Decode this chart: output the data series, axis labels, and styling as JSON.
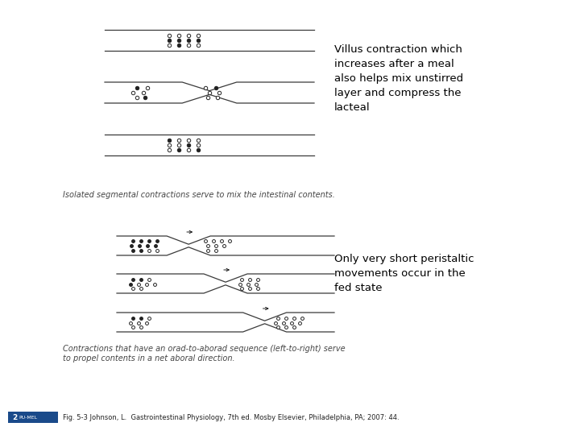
{
  "bg_color": "#ffffff",
  "text1": "Villus contraction which\nincreases after a meal\nalso helps mix unstirred\nlayer and compress the\nlacteal",
  "text2": "Only very short peristaltic\nmovements occur in the\nfed state",
  "caption1": "Isolated segmental contractions serve to mix the intestinal contents.",
  "caption2": "Contractions that have an orad-to-aborad sequence (left-to-right) serve\nto propel contents in a net aboral direction.",
  "footer": "Fig. 5-3 Johnson, L.  Gastrointestinal Physiology, 7th ed. Mosby Elsevier, Philadelphia, PA; 2007: 44.",
  "fig_width": 7.2,
  "fig_height": 5.4,
  "dpi": 100,
  "line_color": "#3a3a3a",
  "dot_color": "#222222"
}
